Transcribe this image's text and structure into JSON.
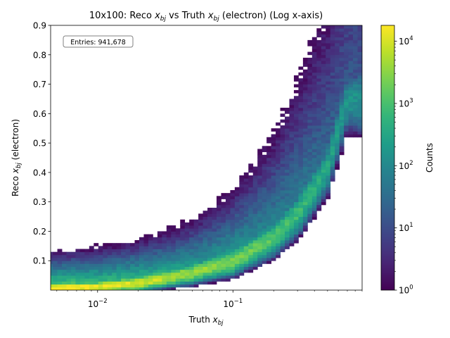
{
  "chart_data": {
    "type": "heatmap",
    "title": "10x100: Reco x_bj vs Truth x_bj (electron) (Log x-axis)",
    "title_parts": [
      "10x100: Reco ",
      "x",
      "bj",
      " vs Truth ",
      "x",
      "bj",
      " (electron) (Log x-axis)"
    ],
    "xlabel_parts": [
      "Truth ",
      "x",
      "bj"
    ],
    "ylabel_parts": [
      "Reco ",
      "x",
      "bj",
      " (electron)"
    ],
    "x_scale": "log",
    "xlim": [
      0.0045,
      0.9
    ],
    "ylim": [
      0.0,
      0.9
    ],
    "x_ticks": [
      {
        "value": 0.01,
        "base": "10",
        "exp": "−2"
      },
      {
        "value": 0.1,
        "base": "10",
        "exp": "−1"
      }
    ],
    "y_ticks": [
      {
        "value": 0.1,
        "label": "0.1"
      },
      {
        "value": 0.2,
        "label": "0.2"
      },
      {
        "value": 0.3,
        "label": "0.3"
      },
      {
        "value": 0.4,
        "label": "0.4"
      },
      {
        "value": 0.5,
        "label": "0.5"
      },
      {
        "value": 0.6,
        "label": "0.6"
      },
      {
        "value": 0.7,
        "label": "0.7"
      },
      {
        "value": 0.8,
        "label": "0.8"
      },
      {
        "value": 0.9,
        "label": "0.9"
      }
    ],
    "colorbar": {
      "label": "Counts",
      "scale": "log",
      "range": [
        1,
        18000
      ],
      "colormap": "viridis",
      "ticks": [
        {
          "value": 1,
          "base": "10",
          "exp": "0"
        },
        {
          "value": 10,
          "base": "10",
          "exp": "1"
        },
        {
          "value": 100,
          "base": "10",
          "exp": "2"
        },
        {
          "value": 1000,
          "base": "10",
          "exp": "3"
        },
        {
          "value": 10000,
          "base": "10",
          "exp": "4"
        }
      ]
    },
    "annotation": "Entries: 941,678",
    "ridge": {
      "description": "peak counts follow Reco ≈ Truth",
      "x": [
        0.005,
        0.01,
        0.02,
        0.05,
        0.1,
        0.2,
        0.3,
        0.5,
        0.7
      ],
      "y": [
        0.008,
        0.012,
        0.025,
        0.06,
        0.1,
        0.18,
        0.26,
        0.42,
        0.65
      ],
      "peak_counts": [
        18000,
        15000,
        10000,
        4000,
        2500,
        1200,
        800,
        300,
        150
      ]
    }
  },
  "colors": {
    "viridis": [
      "#440154",
      "#482878",
      "#3e4989",
      "#31688e",
      "#26828e",
      "#1f9e89",
      "#35b779",
      "#6ece58",
      "#b5de2b",
      "#fde725"
    ],
    "annotation_border": "#808080",
    "axis": "#000000"
  }
}
